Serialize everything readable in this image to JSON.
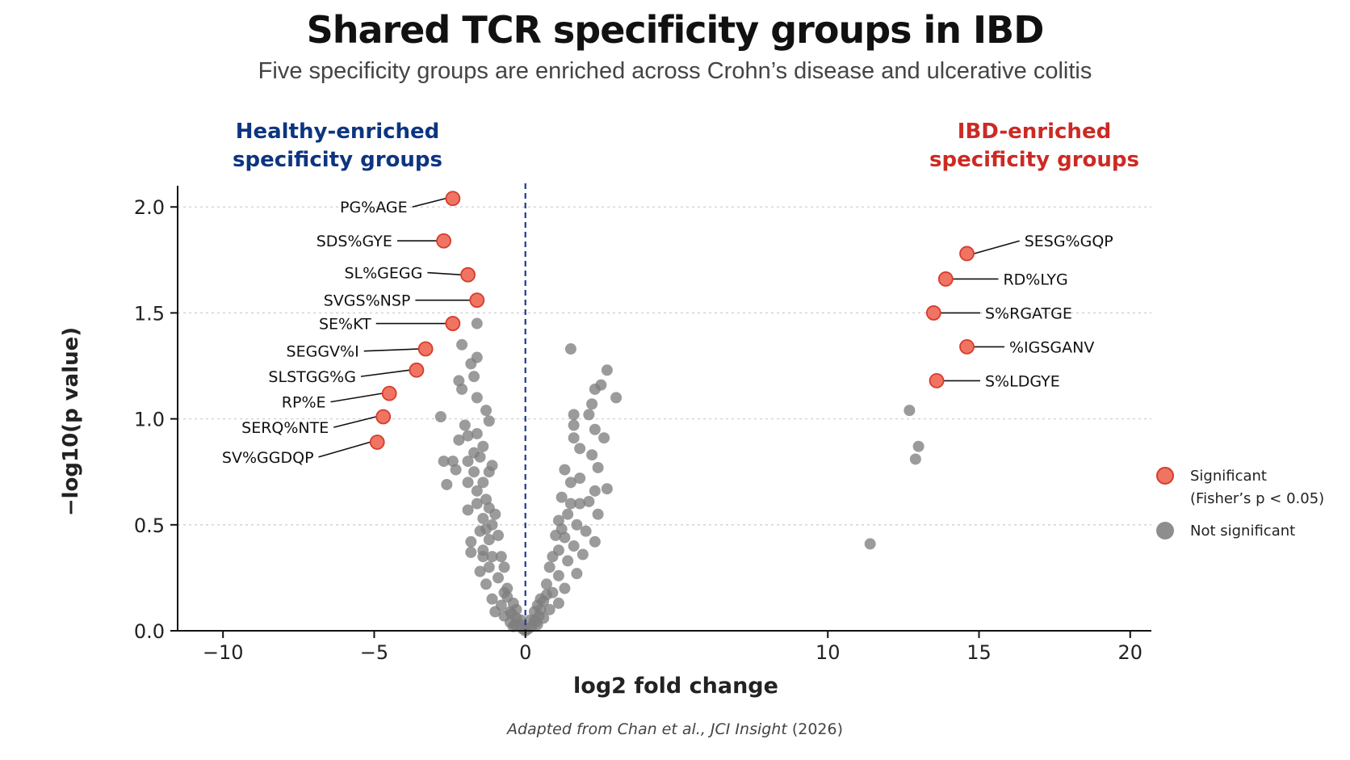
{
  "title": "Shared TCR specificity groups in IBD",
  "subtitle": "Five specificity groups are enriched across Crohn’s disease and ulcerative colitis",
  "annotations": {
    "healthy_label": [
      "Healthy-enriched",
      "specificity groups"
    ],
    "ibd_label": [
      "IBD-enriched",
      "specificity groups"
    ]
  },
  "colors": {
    "healthy": "#0d3580",
    "ibd": "#cc2a24",
    "significant_fill": "#f07462",
    "significant_stroke": "#d63c2e",
    "not_significant": "#7f7f7f",
    "zero_line": "#1f3a8a",
    "grid": "#cfcfcf"
  },
  "legend": {
    "significant": "Significant",
    "significant_note": "(Fisher’s p < 0.05)",
    "not_significant": "Not significant"
  },
  "source": {
    "prefix": "Adapted from Chan et al., ",
    "journal": "JCI Insight",
    "year": " (2026)"
  },
  "chart_data": {
    "type": "scatter",
    "xlabel": "log2 fold change",
    "ylabel": "−log10(p value)",
    "xlim": [
      -11.5,
      20.7
    ],
    "ylim": [
      0,
      2.1
    ],
    "xticks": [
      -10,
      -5,
      0,
      10,
      15,
      20
    ],
    "xtick_labels": [
      "−10",
      "−5",
      "0",
      "10",
      "15",
      "20"
    ],
    "yticks": [
      0,
      0.5,
      1.0,
      1.5,
      2.0
    ],
    "ytick_labels": [
      "0.0",
      "0.5",
      "1.0",
      "1.5",
      "2.0"
    ],
    "grid": "horizontal dotted",
    "legend_position": "right",
    "zero_line": "dashed vertical at x = 0",
    "significant": [
      {
        "label": "PG%AGE",
        "x": -2.4,
        "y": 2.04,
        "side": "left",
        "label_x": -3.9,
        "label_y": 2.0
      },
      {
        "label": "SDS%GYE",
        "x": -2.7,
        "y": 1.84,
        "side": "left",
        "label_x": -4.4,
        "label_y": 1.84
      },
      {
        "label": "SL%GEGG",
        "x": -1.9,
        "y": 1.68,
        "side": "left",
        "label_x": -3.4,
        "label_y": 1.69
      },
      {
        "label": "SVGS%NSP",
        "x": -1.6,
        "y": 1.56,
        "side": "left",
        "label_x": -3.8,
        "label_y": 1.56
      },
      {
        "label": "SE%KT",
        "x": -2.4,
        "y": 1.45,
        "side": "left",
        "label_x": -5.1,
        "label_y": 1.45
      },
      {
        "label": "SEGGV%I",
        "x": -3.3,
        "y": 1.33,
        "side": "left",
        "label_x": -5.5,
        "label_y": 1.32
      },
      {
        "label": "SLSTGG%G",
        "x": -3.6,
        "y": 1.23,
        "side": "left",
        "label_x": -5.6,
        "label_y": 1.2
      },
      {
        "label": "RP%E",
        "x": -4.5,
        "y": 1.12,
        "side": "left",
        "label_x": -6.6,
        "label_y": 1.08
      },
      {
        "label": "SERQ%NTE",
        "x": -4.7,
        "y": 1.01,
        "side": "left",
        "label_x": -6.5,
        "label_y": 0.96
      },
      {
        "label": "SV%GGDQP",
        "x": -4.9,
        "y": 0.89,
        "side": "left",
        "label_x": -7.0,
        "label_y": 0.82
      },
      {
        "label": "SESG%GQP",
        "x": 14.6,
        "y": 1.78,
        "side": "right",
        "label_x": 16.5,
        "label_y": 1.84
      },
      {
        "label": "RD%LYG",
        "x": 13.9,
        "y": 1.66,
        "side": "right",
        "label_x": 15.8,
        "label_y": 1.66
      },
      {
        "label": "S%RGATGE",
        "x": 13.5,
        "y": 1.5,
        "side": "right",
        "label_x": 15.2,
        "label_y": 1.5
      },
      {
        "label": "%IGSGANV",
        "x": 14.6,
        "y": 1.34,
        "side": "right",
        "label_x": 16.0,
        "label_y": 1.34
      },
      {
        "label": "S%LDGYE",
        "x": 13.6,
        "y": 1.18,
        "side": "right",
        "label_x": 15.2,
        "label_y": 1.18
      }
    ],
    "not_significant": [
      [
        -1.6,
        1.45
      ],
      [
        -2.1,
        1.35
      ],
      [
        -2.8,
        1.01
      ],
      [
        -1.8,
        1.26
      ],
      [
        -1.6,
        1.29
      ],
      [
        -1.7,
        1.2
      ],
      [
        -2.2,
        1.18
      ],
      [
        -2.1,
        1.14
      ],
      [
        -1.6,
        1.1
      ],
      [
        -1.3,
        1.04
      ],
      [
        -1.2,
        0.99
      ],
      [
        -2.2,
        0.9
      ],
      [
        -1.9,
        0.92
      ],
      [
        -2.0,
        0.97
      ],
      [
        -1.6,
        0.93
      ],
      [
        -1.4,
        0.87
      ],
      [
        -1.7,
        0.84
      ],
      [
        -2.7,
        0.8
      ],
      [
        -2.4,
        0.8
      ],
      [
        -2.3,
        0.76
      ],
      [
        -2.6,
        0.69
      ],
      [
        -1.9,
        0.8
      ],
      [
        -1.5,
        0.82
      ],
      [
        -1.1,
        0.78
      ],
      [
        -1.2,
        0.75
      ],
      [
        -1.7,
        0.75
      ],
      [
        -1.4,
        0.7
      ],
      [
        -1.9,
        0.7
      ],
      [
        -1.6,
        0.66
      ],
      [
        -1.3,
        0.62
      ],
      [
        -1.2,
        0.58
      ],
      [
        -1.6,
        0.6
      ],
      [
        -1.9,
        0.57
      ],
      [
        -1.4,
        0.53
      ],
      [
        -1.1,
        0.5
      ],
      [
        -1.5,
        0.47
      ],
      [
        -1.2,
        0.43
      ],
      [
        -1.8,
        0.42
      ],
      [
        -1.4,
        0.38
      ],
      [
        -1.1,
        0.35
      ],
      [
        -1.8,
        0.37
      ],
      [
        -1.2,
        0.3
      ],
      [
        -1.5,
        0.28
      ],
      [
        -1.3,
        0.22
      ],
      [
        -0.9,
        0.25
      ],
      [
        -1.1,
        0.15
      ],
      [
        -0.8,
        0.12
      ],
      [
        -1.0,
        0.09
      ],
      [
        -0.7,
        0.07
      ],
      [
        -0.5,
        0.04
      ],
      [
        -0.4,
        0.02
      ],
      [
        -1.0,
        0.55
      ],
      [
        -0.9,
        0.45
      ],
      [
        -0.8,
        0.35
      ],
      [
        -0.7,
        0.3
      ],
      [
        -0.6,
        0.2
      ],
      [
        -0.3,
        0.06
      ],
      [
        -1.3,
        0.48
      ],
      [
        -1.4,
        0.35
      ],
      [
        1.5,
        1.33
      ],
      [
        2.7,
        1.23
      ],
      [
        2.5,
        1.16
      ],
      [
        2.3,
        1.14
      ],
      [
        3.0,
        1.1
      ],
      [
        2.2,
        1.07
      ],
      [
        1.6,
        1.02
      ],
      [
        2.1,
        1.02
      ],
      [
        1.6,
        0.97
      ],
      [
        2.3,
        0.95
      ],
      [
        1.6,
        0.91
      ],
      [
        2.6,
        0.91
      ],
      [
        1.8,
        0.86
      ],
      [
        2.2,
        0.83
      ],
      [
        1.3,
        0.76
      ],
      [
        1.8,
        0.72
      ],
      [
        2.4,
        0.77
      ],
      [
        2.7,
        0.67
      ],
      [
        1.5,
        0.7
      ],
      [
        2.3,
        0.66
      ],
      [
        1.2,
        0.63
      ],
      [
        1.8,
        0.6
      ],
      [
        2.1,
        0.61
      ],
      [
        1.4,
        0.55
      ],
      [
        2.4,
        0.55
      ],
      [
        1.1,
        0.52
      ],
      [
        1.7,
        0.5
      ],
      [
        2.0,
        0.47
      ],
      [
        1.3,
        0.44
      ],
      [
        2.3,
        0.42
      ],
      [
        1.6,
        0.4
      ],
      [
        1.1,
        0.38
      ],
      [
        1.9,
        0.36
      ],
      [
        1.4,
        0.33
      ],
      [
        1.7,
        0.27
      ],
      [
        1.1,
        0.26
      ],
      [
        1.3,
        0.2
      ],
      [
        0.9,
        0.18
      ],
      [
        1.1,
        0.13
      ],
      [
        0.8,
        0.1
      ],
      [
        0.6,
        0.06
      ],
      [
        0.4,
        0.03
      ],
      [
        0.3,
        0.05
      ],
      [
        1.0,
        0.45
      ],
      [
        0.9,
        0.35
      ],
      [
        0.8,
        0.3
      ],
      [
        0.7,
        0.22
      ],
      [
        0.5,
        0.15
      ],
      [
        1.5,
        0.6
      ],
      [
        1.2,
        0.48
      ],
      [
        0.0,
        0.0
      ],
      [
        0.1,
        0.01
      ],
      [
        -0.1,
        0.01
      ],
      [
        0.2,
        0.02
      ],
      [
        -0.2,
        0.03
      ],
      [
        0.15,
        0.05
      ],
      [
        -0.15,
        0.05
      ],
      [
        0.3,
        0.09
      ],
      [
        -0.3,
        0.1
      ],
      [
        0.4,
        0.12
      ],
      [
        -0.4,
        0.13
      ],
      [
        0.5,
        0.1
      ],
      [
        -0.5,
        0.09
      ],
      [
        0.6,
        0.14
      ],
      [
        -0.6,
        0.16
      ],
      [
        0.35,
        0.04
      ],
      [
        -0.35,
        0.03
      ],
      [
        0.7,
        0.17
      ],
      [
        -0.7,
        0.18
      ],
      [
        0.45,
        0.07
      ],
      [
        -0.45,
        0.08
      ],
      [
        11.4,
        0.41
      ],
      [
        12.7,
        1.04
      ],
      [
        13.0,
        0.87
      ],
      [
        12.9,
        0.81
      ]
    ]
  }
}
